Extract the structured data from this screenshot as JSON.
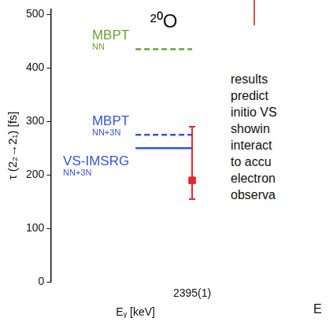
{
  "chart_data": {
    "type": "scatter",
    "title": "²⁰O",
    "y_label": "τ (2₂→2₁) [fs]",
    "x_label": "Eᵧ [keV]",
    "categories": [
      null,
      null,
      "2395(1)"
    ],
    "series": [
      {
        "name": "MBPT",
        "interaction": "NN",
        "color": "#6aa232",
        "line_style": "dashed",
        "values": [
          null,
          435,
          435
        ]
      },
      {
        "name": "MBPT",
        "interaction": "NN+3N",
        "color": "#3355dd",
        "line_style": "dashed",
        "values": [
          null,
          275,
          275
        ]
      },
      {
        "name": "VS-IMSRG",
        "interaction": "NN+3N",
        "color": "#3355dd",
        "line_style": "solid",
        "values": [
          null,
          250,
          250
        ]
      },
      {
        "color": "#e6262e",
        "marker": "square",
        "values": [
          null,
          null,
          190
        ],
        "error_minus": [
          null,
          null,
          35
        ],
        "error_plus": [
          null,
          null,
          100
        ]
      }
    ],
    "ylim": [
      0,
      510
    ],
    "yticks": [
      0,
      100,
      200,
      300,
      400,
      500
    ],
    "grid": false
  },
  "side_text": {
    "lines": [
      "results",
      "predict",
      "initio VS",
      "showin",
      "interact",
      "to accu",
      "electron",
      "observa"
    ],
    "footer": "E"
  }
}
